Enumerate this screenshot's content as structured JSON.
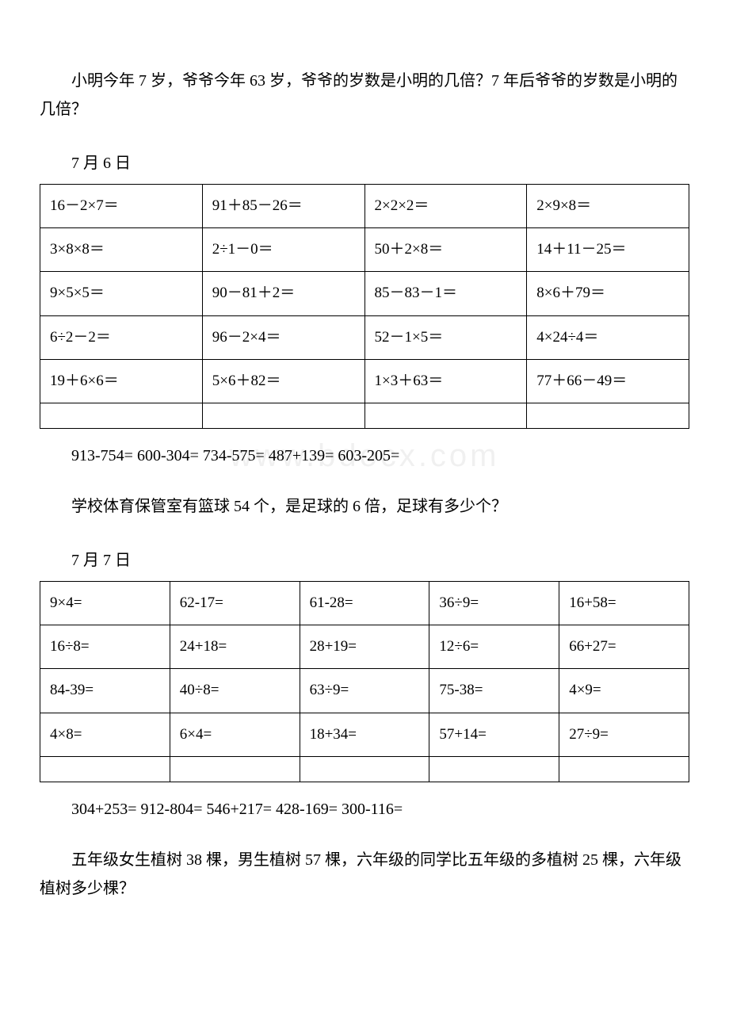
{
  "intro_paragraph": "小明今年 7 岁，爷爷今年 63 岁，爷爷的岁数是小明的几倍？7 年后爷爷的岁数是小明的几倍？",
  "section1": {
    "date": "7 月 6 日",
    "table": [
      [
        "16－2×7＝",
        "91＋85－26＝",
        "2×2×2＝",
        "2×9×8＝"
      ],
      [
        "3×8×8＝",
        "2÷1－0＝",
        "50＋2×8＝",
        "14＋11－25＝"
      ],
      [
        "9×5×5＝",
        "90－81＋2＝",
        "85－83－1＝",
        "8×6＋79＝"
      ],
      [
        "6÷2－2＝",
        "96－2×4＝",
        "52－1×5＝",
        "4×24÷4＝"
      ],
      [
        "19＋6×6＝",
        "5×6＋82＝",
        "1×3＋63＝",
        "77＋66－49＝"
      ],
      [
        "",
        "",
        "",
        ""
      ]
    ],
    "equation_line": "913-754= 600-304= 734-575= 487+139= 603-205=",
    "word_problem": "学校体育保管室有篮球 54 个，是足球的 6 倍，足球有多少个？"
  },
  "section2": {
    "date": "7 月 7 日",
    "table": [
      [
        "9×4=",
        "62-17=",
        "61-28=",
        "36÷9=",
        "16+58="
      ],
      [
        "16÷8=",
        "24+18=",
        "28+19=",
        "12÷6=",
        "66+27="
      ],
      [
        "84-39=",
        "40÷8=",
        "63÷9=",
        "75-38=",
        "4×9="
      ],
      [
        "4×8=",
        "6×4=",
        "18+34=",
        "57+14=",
        "27÷9="
      ],
      [
        "",
        "",
        "",
        "",
        ""
      ]
    ],
    "equation_line": "304+253= 912-804= 546+217= 428-169= 300-116=",
    "word_problem": "五年级女生植树 38 棵，男生植树 57 棵，六年级的同学比五年级的多植树 25 棵，六年级植树多少棵？"
  },
  "watermark_text": "www.bdocx.com"
}
